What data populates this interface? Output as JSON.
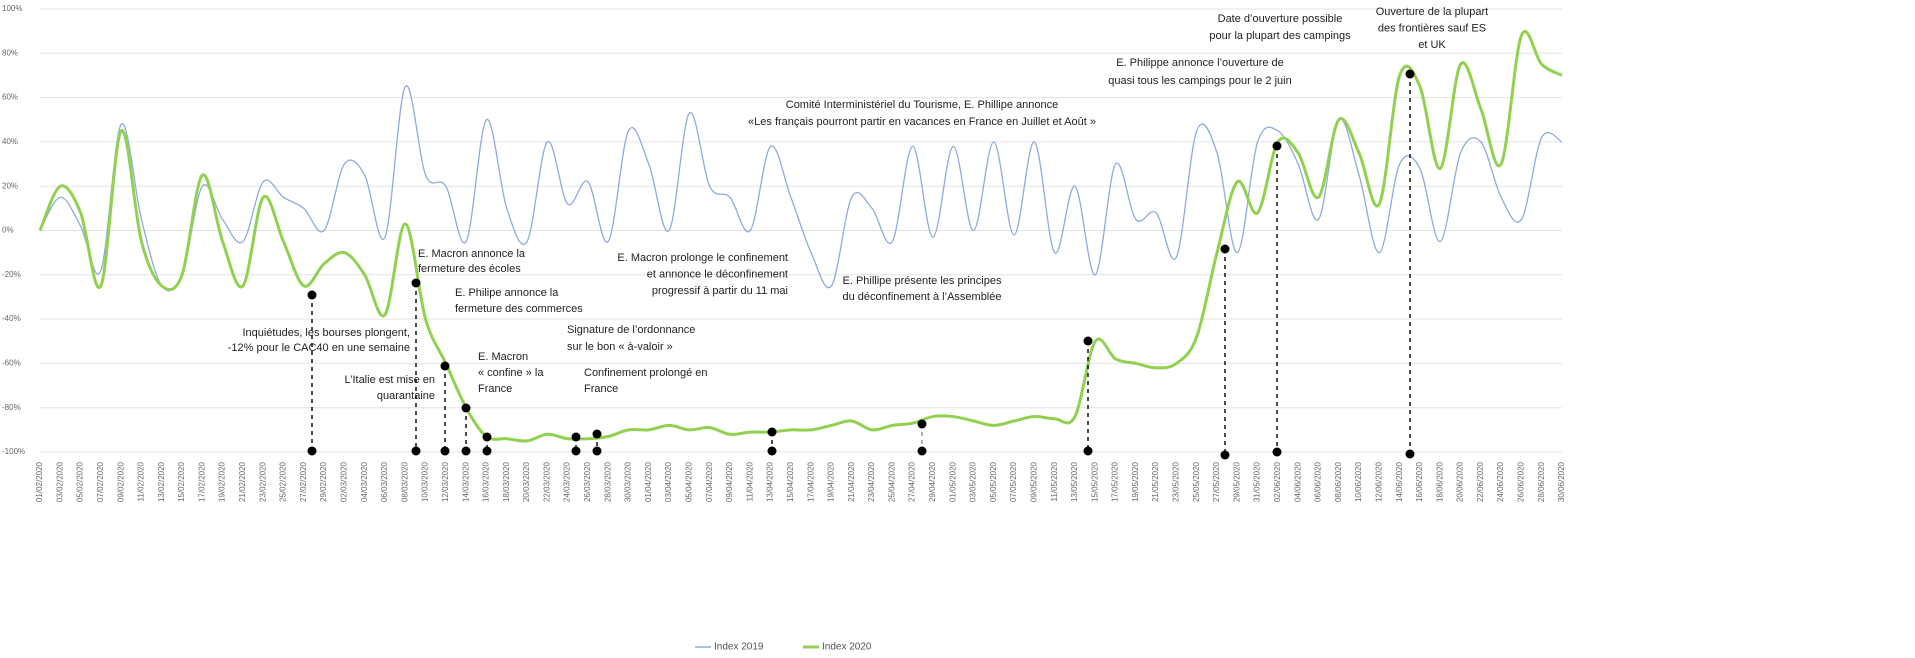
{
  "chart_data": {
    "type": "line",
    "categories": [
      "01/02/2020",
      "03/02/2020",
      "05/02/2020",
      "07/02/2020",
      "09/02/2020",
      "11/02/2020",
      "13/02/2020",
      "15/02/2020",
      "17/02/2020",
      "19/02/2020",
      "21/02/2020",
      "23/02/2020",
      "25/02/2020",
      "27/02/2020",
      "29/02/2020",
      "02/03/2020",
      "04/03/2020",
      "06/03/2020",
      "08/03/2020",
      "10/03/2020",
      "12/03/2020",
      "14/03/2020",
      "16/03/2020",
      "18/03/2020",
      "20/03/2020",
      "22/03/2020",
      "24/03/2020",
      "26/03/2020",
      "28/03/2020",
      "30/03/2020",
      "01/04/2020",
      "03/04/2020",
      "05/04/2020",
      "07/04/2020",
      "09/04/2020",
      "11/04/2020",
      "13/04/2020",
      "15/04/2020",
      "17/04/2020",
      "19/04/2020",
      "21/04/2020",
      "23/04/2020",
      "25/04/2020",
      "27/04/2020",
      "29/04/2020",
      "01/05/2020",
      "03/05/2020",
      "05/05/2020",
      "07/05/2020",
      "09/05/2020",
      "11/05/2020",
      "13/05/2020",
      "15/05/2020",
      "17/05/2020",
      "19/05/2020",
      "21/05/2020",
      "23/05/2020",
      "25/05/2020",
      "27/05/2020",
      "29/05/2020",
      "31/05/2020",
      "02/06/2020",
      "04/06/2020",
      "06/06/2020",
      "08/06/2020",
      "10/06/2020",
      "12/06/2020",
      "14/06/2020",
      "16/06/2020",
      "18/06/2020",
      "20/06/2020",
      "22/06/2020",
      "24/06/2020",
      "26/06/2020",
      "28/06/2020",
      "30/06/2020"
    ],
    "series": [
      {
        "name": "Index 2019",
        "color": "#8faadc",
        "values": [
          0,
          15,
          2,
          -18,
          48,
          5,
          -25,
          -20,
          20,
          5,
          -5,
          22,
          15,
          10,
          0,
          30,
          25,
          -3,
          65,
          25,
          20,
          -5,
          50,
          10,
          -5,
          40,
          12,
          22,
          -5,
          45,
          30,
          0,
          53,
          20,
          15,
          0,
          38,
          15,
          -10,
          -25,
          15,
          10,
          -5,
          38,
          -3,
          38,
          0,
          40,
          -2,
          40,
          -10,
          20,
          -20,
          30,
          5,
          8,
          -12,
          45,
          35,
          -10,
          40,
          45,
          30,
          5,
          50,
          25,
          -10,
          30,
          28,
          -5,
          35,
          40,
          15,
          5,
          42,
          40
        ]
      },
      {
        "name": "Index 2020",
        "color": "#92d050",
        "values": [
          0,
          20,
          8,
          -25,
          45,
          -5,
          -25,
          -20,
          25,
          -5,
          -25,
          15,
          -5,
          -25,
          -15,
          -10,
          -20,
          -38,
          3,
          -40,
          -60,
          -80,
          -93,
          -94,
          -95,
          -92,
          -94,
          -94,
          -93,
          -90,
          -90,
          -88,
          -90,
          -89,
          -92,
          -91,
          -91,
          -90,
          -90,
          -88,
          -86,
          -90,
          -88,
          -87,
          -84,
          -84,
          -86,
          -88,
          -86,
          -84,
          -85,
          -84,
          -50,
          -58,
          -60,
          -62,
          -60,
          -48,
          -10,
          22,
          8,
          40,
          35,
          15,
          50,
          35,
          12,
          70,
          65,
          28,
          75,
          55,
          30,
          88,
          75,
          70
        ]
      }
    ],
    "ylim": [
      -100,
      100
    ],
    "yticks": [
      {
        "value": -100,
        "label": "-100%"
      },
      {
        "value": -80,
        "label": "-80%"
      },
      {
        "value": -60,
        "label": "-60%"
      },
      {
        "value": -40,
        "label": "-40%"
      },
      {
        "value": -20,
        "label": "-20%"
      },
      {
        "value": 0,
        "label": "0%"
      },
      {
        "value": 20,
        "label": "20%"
      },
      {
        "value": 40,
        "label": "40%"
      },
      {
        "value": 60,
        "label": "60%"
      },
      {
        "value": 80,
        "label": "80%"
      },
      {
        "value": 100,
        "label": "100%"
      }
    ],
    "grid": true,
    "legend": "bottom",
    "annotations": [
      [
        "Inquiétudes, les bourses plongent,",
        "-12% pour le CAC40 en une semaine"
      ],
      [
        "L’Italie est mise en",
        "quarantaine"
      ],
      [
        "E. Macron annonce la",
        "fermeture des écoles"
      ],
      [
        "E. Philipe annonce la",
        "fermeture des commerces"
      ],
      [
        "E. Macron",
        "« confine » la",
        "France"
      ],
      [
        "Signature de l’ordonnance",
        "sur le bon « à-valoir »"
      ],
      [
        "Confinement  prolongé en",
        "France"
      ],
      [
        "E. Macron prolonge le confinement",
        "et annonce le déconfinement",
        "progressif à partir du 11 mai"
      ],
      [
        "E. Phillipe présente les principes",
        "du déconfinement à l’Assemblée"
      ],
      [
        "Comité Interministériel du Tourisme,  E. Phillipe annonce",
        "«Les français pourront partir en vacances en France en Juillet et Août  »"
      ],
      [
        "E. Philippe annonce l’ouverture de",
        "quasi tous les campings pour le 2 juin"
      ],
      [
        "Date d’ouverture possible",
        "pour la plupart des campings"
      ],
      [
        "Ouverture de la plupart",
        "des frontières sauf ES",
        "et UK"
      ]
    ]
  }
}
